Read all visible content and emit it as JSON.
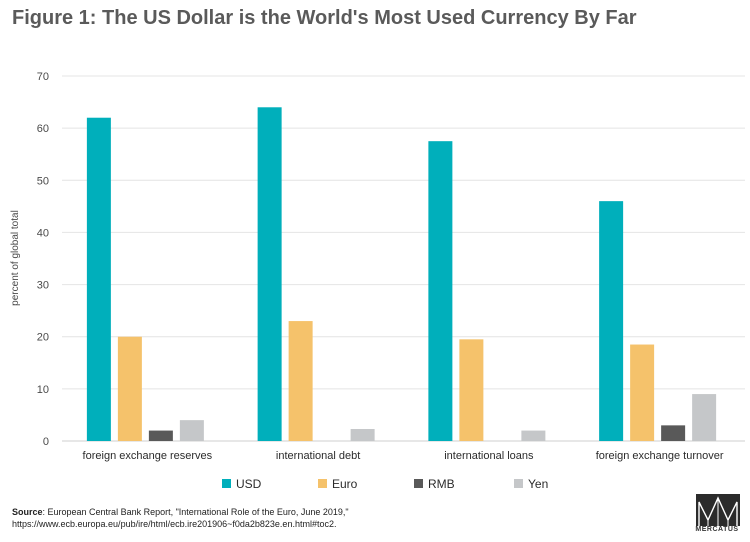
{
  "title": "Figure 1: The US Dollar is the World's Most Used Currency By Far",
  "chart_data": {
    "type": "bar",
    "ylabel": "percent of global total",
    "xlabel": "",
    "ylim": [
      0,
      70
    ],
    "yticks": [
      0,
      10,
      20,
      30,
      40,
      50,
      60,
      70
    ],
    "grid": true,
    "legend_position": "bottom",
    "categories": [
      "foreign exchange reserves",
      "international debt",
      "international loans",
      "foreign exchange turnover"
    ],
    "series": [
      {
        "name": "USD",
        "color": "#00afbb",
        "values": [
          62,
          64,
          57.5,
          46
        ]
      },
      {
        "name": "Euro",
        "color": "#f5c26b",
        "values": [
          20,
          23,
          19.5,
          18.5
        ]
      },
      {
        "name": "RMB",
        "color": "#595959",
        "values": [
          2,
          0,
          0,
          3
        ]
      },
      {
        "name": "Yen",
        "color": "#c5c7c9",
        "values": [
          4,
          2.3,
          2,
          9
        ]
      }
    ]
  },
  "source": {
    "label": "Source",
    "text": ": European Central Bank Report, \"International Role of the Euro, June 2019,\"",
    "url": "https://www.ecb.europa.eu/pub/ire/html/ecb.ire201906~f0da2b823e.en.html#toc2."
  },
  "logo": {
    "text": "MERCATUS"
  }
}
